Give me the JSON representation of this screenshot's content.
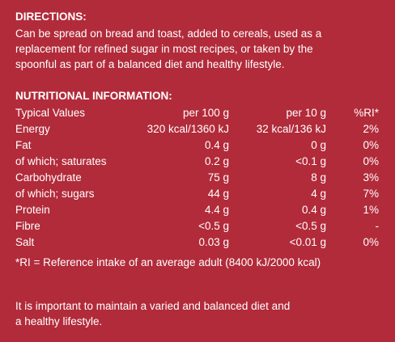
{
  "directions": {
    "heading": "DIRECTIONS:",
    "lines": [
      "Can be spread on bread and toast, added to cereals, used as a",
      "replacement for refined sugar in most recipes, or taken by the",
      "spoonful as part of a balanced diet and healthy lifestyle."
    ]
  },
  "nutrition": {
    "heading": "NUTRITIONAL INFORMATION:",
    "columns": {
      "label": "Typical Values",
      "per100": "per 100 g",
      "per10": "per 10 g",
      "ri": "%RI*"
    },
    "rows": [
      {
        "label": "Energy",
        "per100": "320 kcal/1360 kJ",
        "per10": "32 kcal/136 kJ",
        "ri": "2%"
      },
      {
        "label": "Fat",
        "per100": "0.4 g",
        "per10": "0 g",
        "ri": "0%"
      },
      {
        "label": "of which; saturates",
        "per100": "0.2 g",
        "per10": "<0.1 g",
        "ri": "0%"
      },
      {
        "label": "Carbohydrate",
        "per100": "75 g",
        "per10": "8 g",
        "ri": "3%"
      },
      {
        "label": "of which; sugars",
        "per100": "44 g",
        "per10": "4 g",
        "ri": "7%"
      },
      {
        "label": "Protein",
        "per100": "4.4 g",
        "per10": "0.4 g",
        "ri": "1%"
      },
      {
        "label": "Fibre",
        "per100": "<0.5 g",
        "per10": "<0.5 g",
        "ri": "-"
      },
      {
        "label": "Salt",
        "per100": "0.03 g",
        "per10": "<0.01 g",
        "ri": "0%"
      }
    ],
    "footnote": "*RI = Reference intake of an average adult (8400 kJ/2000 kcal)"
  },
  "closing": {
    "lines": [
      "It is important to maintain a varied and balanced diet and",
      "a healthy lifestyle."
    ]
  },
  "colors": {
    "background": "#b22b3a",
    "text": "#ffffff"
  }
}
